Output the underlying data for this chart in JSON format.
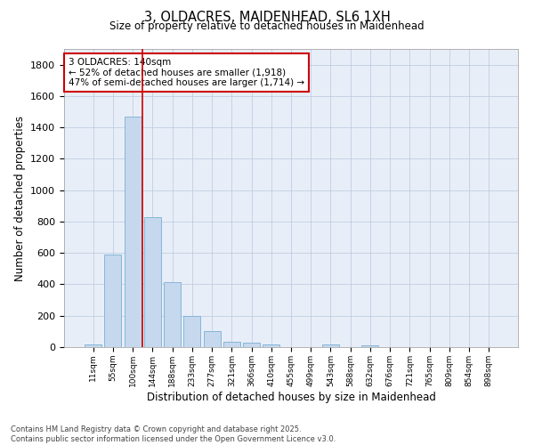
{
  "title": "3, OLDACRES, MAIDENHEAD, SL6 1XH",
  "subtitle": "Size of property relative to detached houses in Maidenhead",
  "xlabel": "Distribution of detached houses by size in Maidenhead",
  "ylabel": "Number of detached properties",
  "bar_color": "#c5d8ee",
  "bar_edge_color": "#7aafd4",
  "background_color": "#e8eef8",
  "grid_color": "#b8c8de",
  "annotation_line_color": "#cc0000",
  "annotation_box_edge_color": "#cc0000",
  "annotation_text": "3 OLDACRES: 140sqm\n← 52% of detached houses are smaller (1,918)\n47% of semi-detached houses are larger (1,714) →",
  "categories": [
    "11sqm",
    "55sqm",
    "100sqm",
    "144sqm",
    "188sqm",
    "233sqm",
    "277sqm",
    "321sqm",
    "366sqm",
    "410sqm",
    "455sqm",
    "499sqm",
    "543sqm",
    "588sqm",
    "632sqm",
    "676sqm",
    "721sqm",
    "765sqm",
    "809sqm",
    "854sqm",
    "898sqm"
  ],
  "values": [
    15,
    590,
    1470,
    830,
    415,
    200,
    100,
    35,
    30,
    18,
    0,
    0,
    15,
    0,
    12,
    0,
    0,
    0,
    0,
    0,
    0
  ],
  "ylim": [
    0,
    1900
  ],
  "yticks": [
    0,
    200,
    400,
    600,
    800,
    1000,
    1200,
    1400,
    1600,
    1800
  ],
  "footer": "Contains HM Land Registry data © Crown copyright and database right 2025.\nContains public sector information licensed under the Open Government Licence v3.0.",
  "fig_width": 6.0,
  "fig_height": 5.0,
  "dpi": 100
}
